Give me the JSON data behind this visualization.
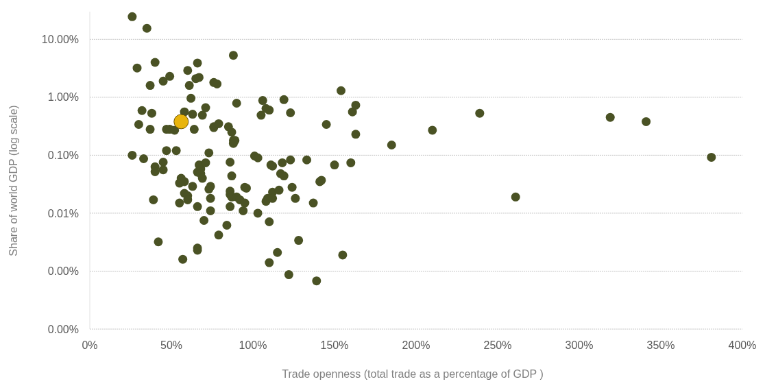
{
  "chart_data": {
    "type": "scatter",
    "xlabel": "Trade openness (total trade as a percentage of GDP )",
    "ylabel": "Share of world GDP (log scale)",
    "log": "y",
    "grid": "y",
    "marker": "circle",
    "xlim": [
      0,
      400
    ],
    "xticks": [
      {
        "value": 0,
        "label": "0%"
      },
      {
        "value": 50,
        "label": "50%"
      },
      {
        "value": 100,
        "label": "100%"
      },
      {
        "value": 150,
        "label": "150%"
      },
      {
        "value": 200,
        "label": "200%"
      },
      {
        "value": 250,
        "label": "250%"
      },
      {
        "value": 300,
        "label": "300%"
      },
      {
        "value": 350,
        "label": "350%"
      },
      {
        "value": 400,
        "label": "400%"
      }
    ],
    "ylim": [
      0.0001,
      30
    ],
    "yticks": [
      {
        "value": 0.0001,
        "label": "0.00%"
      },
      {
        "value": 0.001,
        "label": "0.00%"
      },
      {
        "value": 0.01,
        "label": "0.01%"
      },
      {
        "value": 0.1,
        "label": "0.10%"
      },
      {
        "value": 1,
        "label": "1.00%"
      },
      {
        "value": 10,
        "label": "10.00%"
      }
    ],
    "series": [
      {
        "color": "#4a5224",
        "x": [
          26,
          35,
          29,
          40,
          37,
          32,
          30,
          38,
          37,
          26,
          33,
          40,
          40,
          45,
          45,
          39,
          42,
          47,
          47,
          45,
          49,
          49,
          52,
          53,
          55,
          56,
          58,
          60,
          61,
          62,
          63,
          64,
          65,
          66,
          67,
          69,
          68,
          66,
          67,
          68,
          69,
          63,
          58,
          60,
          58,
          60,
          55,
          57,
          66,
          66,
          66,
          70,
          71,
          73,
          71,
          73,
          74,
          74,
          74,
          76,
          76,
          78,
          76,
          79,
          79,
          84,
          85,
          86,
          86,
          86,
          88,
          87,
          86,
          88,
          88,
          89,
          90,
          87,
          87,
          90,
          92,
          94,
          95,
          95,
          96,
          101,
          103,
          103,
          105,
          106,
          108,
          110,
          111,
          109,
          108,
          110,
          110,
          112,
          112,
          112,
          115,
          117,
          118,
          119,
          116,
          119,
          123,
          123,
          124,
          126,
          122,
          128,
          133,
          137,
          139,
          141,
          142,
          145,
          150,
          154,
          155,
          160,
          161,
          163,
          163,
          185,
          210,
          239,
          261,
          319,
          341,
          381
        ],
        "values": [
          24.6,
          15.5,
          3.2,
          4.0,
          1.6,
          0.59,
          0.34,
          0.53,
          0.28,
          0.1,
          0.087,
          0.063,
          0.052,
          0.076,
          0.056,
          0.017,
          0.0032,
          0.12,
          0.28,
          1.9,
          2.3,
          0.28,
          0.27,
          0.12,
          0.033,
          0.04,
          0.56,
          2.9,
          1.6,
          0.96,
          0.51,
          0.28,
          2.1,
          3.9,
          2.2,
          0.49,
          0.058,
          0.051,
          0.068,
          0.048,
          0.04,
          0.029,
          0.022,
          0.02,
          0.035,
          0.017,
          0.015,
          0.0016,
          0.0025,
          0.0023,
          0.013,
          0.0075,
          0.66,
          0.11,
          0.074,
          0.026,
          0.011,
          0.018,
          0.029,
          0.3,
          1.8,
          1.7,
          0.31,
          0.35,
          0.0042,
          0.0062,
          0.31,
          0.013,
          0.021,
          0.076,
          5.3,
          0.25,
          0.024,
          0.18,
          0.16,
          0.18,
          0.79,
          0.044,
          0.019,
          0.019,
          0.017,
          0.011,
          0.015,
          0.028,
          0.027,
          0.097,
          0.09,
          0.01,
          0.49,
          0.88,
          0.64,
          0.6,
          0.068,
          0.018,
          0.016,
          0.0071,
          0.0014,
          0.065,
          0.023,
          0.018,
          0.0021,
          0.048,
          0.074,
          0.044,
          0.025,
          0.91,
          0.54,
          0.083,
          0.028,
          0.018,
          0.00087,
          0.0034,
          0.083,
          0.015,
          0.00068,
          0.035,
          0.037,
          0.34,
          0.068,
          1.3,
          0.0019,
          0.074,
          0.56,
          0.73,
          0.23,
          0.15,
          0.27,
          0.53,
          0.019,
          0.45,
          0.38,
          0.092
        ]
      },
      {
        "color": "#e8b40c",
        "x": [
          56
        ],
        "values": [
          0.38
        ]
      }
    ]
  }
}
